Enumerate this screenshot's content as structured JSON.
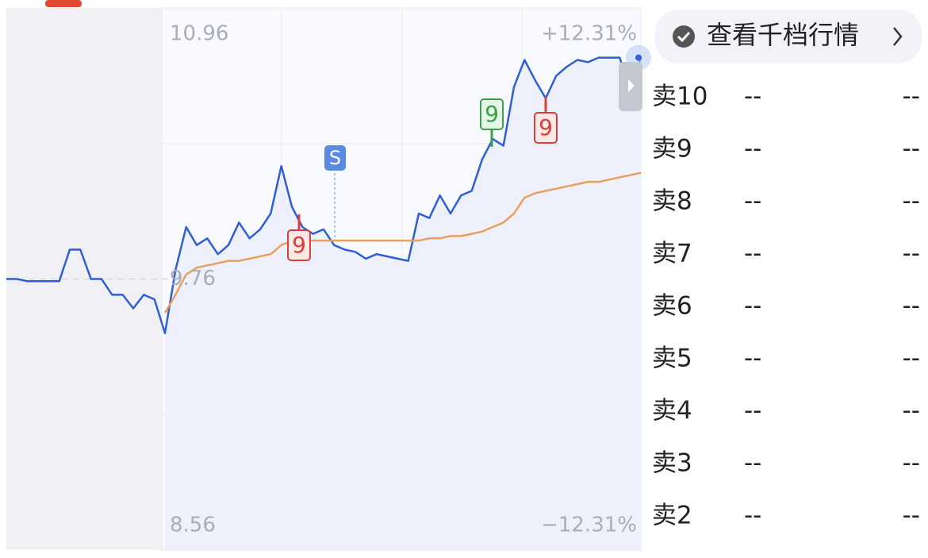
{
  "chart_data": {
    "type": "line",
    "ylim": [
      8.56,
      10.96
    ],
    "yticks": [
      8.56,
      9.76,
      10.96
    ],
    "y2lim": [
      -12.31,
      12.31
    ],
    "y2ticks": [
      {
        "value": -12.31,
        "label": "−12.31%"
      },
      {
        "value": 12.31,
        "label": "+12.31%"
      }
    ],
    "series": [
      {
        "color": "#2f5fd6",
        "values": [
          9.76,
          9.76,
          9.75,
          9.75,
          9.75,
          9.75,
          9.89,
          9.89,
          9.76,
          9.76,
          9.69,
          9.69,
          9.63,
          9.69,
          9.67,
          9.52,
          9.8,
          9.99,
          9.91,
          9.94,
          9.87,
          9.91,
          10.01,
          9.94,
          9.98,
          10.05,
          10.26,
          10.08,
          9.99,
          9.96,
          9.98,
          9.91,
          9.89,
          9.88,
          9.85,
          9.87,
          9.86,
          9.85,
          9.84,
          10.05,
          10.03,
          10.13,
          10.05,
          10.13,
          10.15,
          10.29,
          10.38,
          10.35,
          10.61,
          10.73,
          10.64,
          10.56,
          10.66,
          10.7,
          10.73,
          10.72,
          10.74,
          10.74,
          10.74,
          10.59,
          10.74
        ]
      },
      {
        "color": "#e9a05e",
        "values": [
          null,
          null,
          null,
          null,
          null,
          null,
          null,
          null,
          null,
          null,
          null,
          null,
          null,
          null,
          null,
          9.61,
          9.69,
          9.78,
          9.81,
          9.82,
          9.83,
          9.84,
          9.84,
          9.85,
          9.86,
          9.87,
          9.91,
          9.93,
          9.93,
          9.93,
          9.93,
          9.93,
          9.93,
          9.93,
          9.93,
          9.93,
          9.93,
          9.93,
          9.93,
          9.93,
          9.94,
          9.94,
          9.95,
          9.95,
          9.96,
          9.97,
          9.99,
          10.01,
          10.05,
          10.12,
          10.14,
          10.15,
          10.16,
          10.17,
          10.18,
          10.19,
          10.19,
          10.2,
          10.21,
          10.22,
          10.23
        ]
      }
    ],
    "annotations": [
      {
        "text": "S",
        "color": "#5b8be0"
      },
      {
        "text": "9",
        "color": "#d9403a"
      },
      {
        "text": "9",
        "color": "#3aa14a"
      },
      {
        "text": "9",
        "color": "#d9403a"
      }
    ]
  },
  "button": {
    "label": "查看千档行情"
  },
  "order_book": {
    "rows": [
      [
        "卖10",
        "--",
        "--"
      ],
      [
        "卖9",
        "--",
        "--"
      ],
      [
        "卖8",
        "--",
        "--"
      ],
      [
        "卖7",
        "--",
        "--"
      ],
      [
        "卖6",
        "--",
        "--"
      ],
      [
        "卖5",
        "--",
        "--"
      ],
      [
        "卖4",
        "--",
        "--"
      ],
      [
        "卖3",
        "--",
        "--"
      ],
      [
        "卖2",
        "--",
        "--"
      ]
    ]
  }
}
